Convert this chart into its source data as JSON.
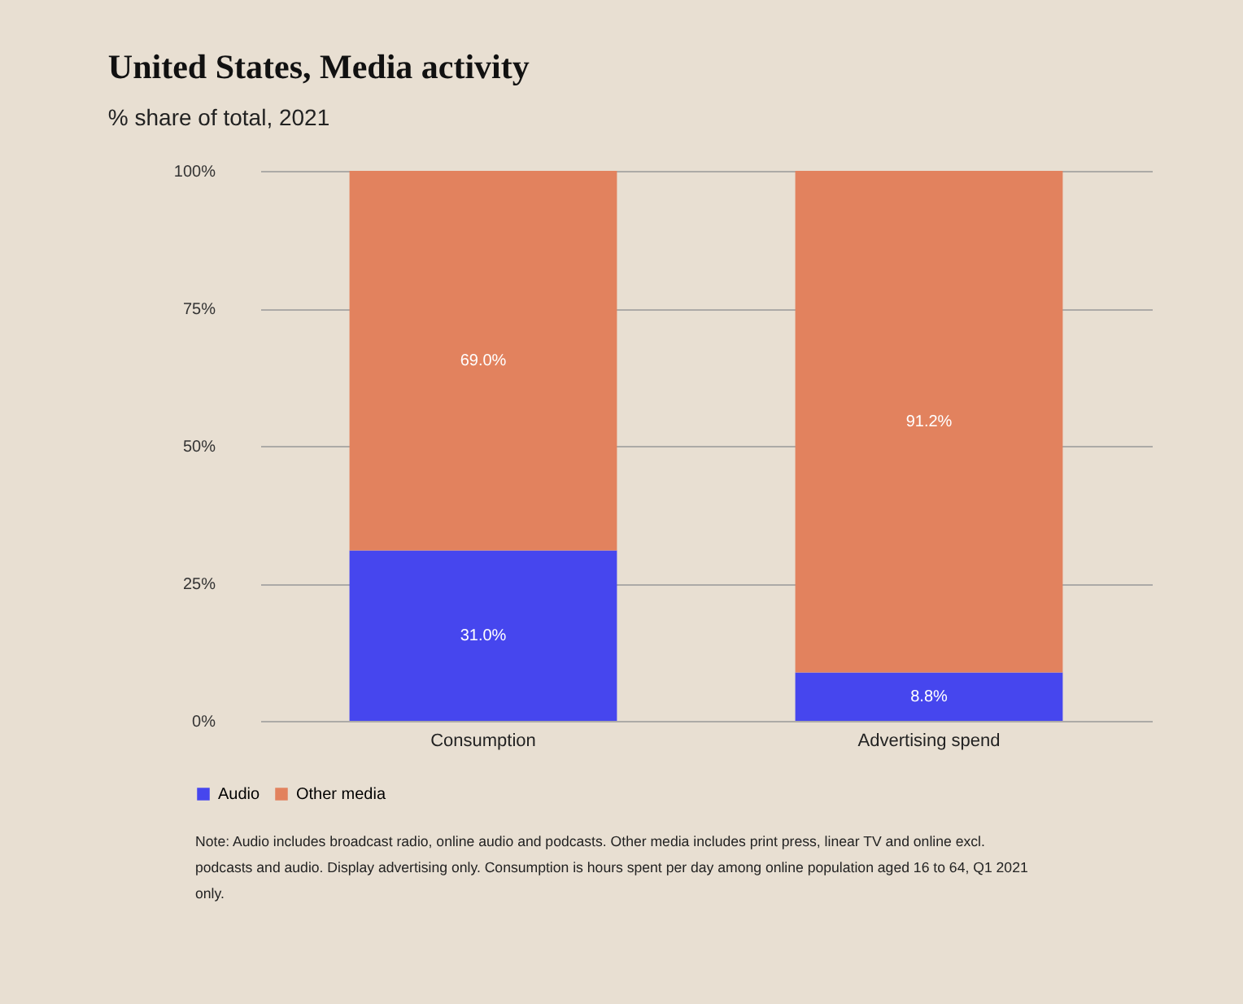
{
  "chart_data": {
    "type": "bar",
    "title": "United States, Media activity",
    "subtitle": "% share of total, 2021",
    "categories": [
      "Consumption",
      "Advertising spend"
    ],
    "stacked": true,
    "series": [
      {
        "name": "Audio",
        "color": "#4646ee",
        "values": [
          31.0,
          8.8
        ],
        "value_labels": [
          "31.0%",
          "8.8%"
        ]
      },
      {
        "name": "Other media",
        "color": "#e2825e",
        "values": [
          69.0,
          91.2
        ],
        "value_labels": [
          "69.0%",
          "91.2%"
        ]
      }
    ],
    "ylim": [
      0,
      100
    ],
    "yticks": [
      {
        "value": 0,
        "label": "0%"
      },
      {
        "value": 25,
        "label": "25%"
      },
      {
        "value": 50,
        "label": "50%"
      },
      {
        "value": 75,
        "label": "75%"
      },
      {
        "value": 100,
        "label": "100%"
      }
    ],
    "grid": "y",
    "legend": "bottom left",
    "annotations": [
      "Note: Audio includes broadcast radio, online audio and podcasts. Other media includes print press, linear TV and online excl. podcasts and audio. Display advertising only. Consumption is hours spent per day among online population aged 16 to 64, Q1 2021 only."
    ]
  }
}
